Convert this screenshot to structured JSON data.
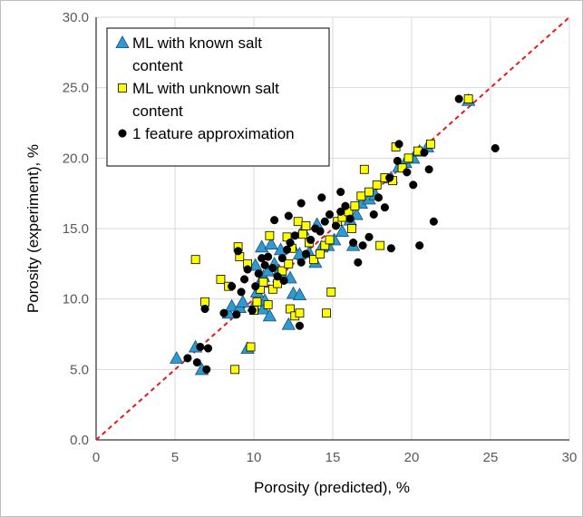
{
  "chart_data": {
    "type": "scatter",
    "xlabel": "Porosity (predicted), %",
    "ylabel": "Porosity (experiment), %",
    "xlim": [
      0,
      30
    ],
    "ylim": [
      0,
      30
    ],
    "x_ticks": [
      "0",
      "5",
      "10",
      "15",
      "20",
      "25",
      "30"
    ],
    "y_ticks": [
      "0.0",
      "5.0",
      "10.0",
      "15.0",
      "20.0",
      "25.0",
      "30.0"
    ],
    "grid": true,
    "legend_placement": "top-left",
    "reference_line": {
      "from": [
        0,
        0
      ],
      "to": [
        30,
        30
      ],
      "color": "#e41a1c",
      "style": "dashed"
    },
    "series": [
      {
        "name": "ML with known salt content",
        "legend_lines": [
          "ML with known salt",
          "content"
        ],
        "marker": "triangle",
        "color": "#2e9ad0",
        "points": [
          [
            5.1,
            5.8
          ],
          [
            6.3,
            6.6
          ],
          [
            6.7,
            5.0
          ],
          [
            9.6,
            6.5
          ],
          [
            8.4,
            9.0
          ],
          [
            8.6,
            9.5
          ],
          [
            9.1,
            9.4
          ],
          [
            9.3,
            9.8
          ],
          [
            10.0,
            9.5
          ],
          [
            10.6,
            9.3
          ],
          [
            10.7,
            9.9
          ],
          [
            11.0,
            8.8
          ],
          [
            10.2,
            10.5
          ],
          [
            10.4,
            11.2
          ],
          [
            10.6,
            11.6
          ],
          [
            10.9,
            12.0
          ],
          [
            11.3,
            12.5
          ],
          [
            11.6,
            12.0
          ],
          [
            11.9,
            11.5
          ],
          [
            12.3,
            11.5
          ],
          [
            12.5,
            10.4
          ],
          [
            12.9,
            10.3
          ],
          [
            12.2,
            8.2
          ],
          [
            10.5,
            13.7
          ],
          [
            11.1,
            13.9
          ],
          [
            11.7,
            13.5
          ],
          [
            12.4,
            13.8
          ],
          [
            12.9,
            13.2
          ],
          [
            13.5,
            13.3
          ],
          [
            13.9,
            12.6
          ],
          [
            14.3,
            13.7
          ],
          [
            14.7,
            13.8
          ],
          [
            15.1,
            14.2
          ],
          [
            15.6,
            14.8
          ],
          [
            16.1,
            15.6
          ],
          [
            16.5,
            16.0
          ],
          [
            16.3,
            13.8
          ],
          [
            16.8,
            16.8
          ],
          [
            17.3,
            17.1
          ],
          [
            17.7,
            17.4
          ],
          [
            18.7,
            18.6
          ],
          [
            19.2,
            19.4
          ],
          [
            19.6,
            19.7
          ],
          [
            20.1,
            20.0
          ],
          [
            20.5,
            20.5
          ],
          [
            21.0,
            20.8
          ],
          [
            23.6,
            24.1
          ],
          [
            10.1,
            12.4
          ],
          [
            13.1,
            14.9
          ],
          [
            14.0,
            15.3
          ]
        ]
      },
      {
        "name": "ML with unknown salt content",
        "legend_lines": [
          "ML with unknown salt",
          "content"
        ],
        "marker": "square",
        "color": "#ffff00",
        "points": [
          [
            6.3,
            12.8
          ],
          [
            6.9,
            9.8
          ],
          [
            7.9,
            11.4
          ],
          [
            8.4,
            10.9
          ],
          [
            8.8,
            5.0
          ],
          [
            9.0,
            13.7
          ],
          [
            9.1,
            13.0
          ],
          [
            9.6,
            12.5
          ],
          [
            9.8,
            6.6
          ],
          [
            10.0,
            9.2
          ],
          [
            10.2,
            9.8
          ],
          [
            10.4,
            10.7
          ],
          [
            10.6,
            11.2
          ],
          [
            10.9,
            9.6
          ],
          [
            11.2,
            10.7
          ],
          [
            11.5,
            11.1
          ],
          [
            11.8,
            12.0
          ],
          [
            12.2,
            12.5
          ],
          [
            12.3,
            9.3
          ],
          [
            12.6,
            8.8
          ],
          [
            12.9,
            9.0
          ],
          [
            12.1,
            14.4
          ],
          [
            12.4,
            13.6
          ],
          [
            12.8,
            15.5
          ],
          [
            13.1,
            14.6
          ],
          [
            13.5,
            14.0
          ],
          [
            13.8,
            12.8
          ],
          [
            14.2,
            13.2
          ],
          [
            14.5,
            13.8
          ],
          [
            14.8,
            14.2
          ],
          [
            14.9,
            10.5
          ],
          [
            14.6,
            9.0
          ],
          [
            15.3,
            15.5
          ],
          [
            15.6,
            15.8
          ],
          [
            16.0,
            16.2
          ],
          [
            16.2,
            15.0
          ],
          [
            16.4,
            16.6
          ],
          [
            16.8,
            17.3
          ],
          [
            17.0,
            19.2
          ],
          [
            17.3,
            17.6
          ],
          [
            17.8,
            18.1
          ],
          [
            18.0,
            13.8
          ],
          [
            18.3,
            18.6
          ],
          [
            18.8,
            18.4
          ],
          [
            19.0,
            20.8
          ],
          [
            19.4,
            19.3
          ],
          [
            19.8,
            20.0
          ],
          [
            20.4,
            20.5
          ],
          [
            21.2,
            21.0
          ],
          [
            23.6,
            24.2
          ],
          [
            11.0,
            14.5
          ],
          [
            13.3,
            15.2
          ]
        ]
      },
      {
        "name": "1 feature approximation",
        "legend_lines": [
          "1 feature approximation"
        ],
        "marker": "circle",
        "color": "#000000",
        "points": [
          [
            5.8,
            5.8
          ],
          [
            6.4,
            5.5
          ],
          [
            6.6,
            6.6
          ],
          [
            7.0,
            5.0
          ],
          [
            7.1,
            6.5
          ],
          [
            6.9,
            9.3
          ],
          [
            8.1,
            9.0
          ],
          [
            8.6,
            10.9
          ],
          [
            8.9,
            8.9
          ],
          [
            9.2,
            10.5
          ],
          [
            9.4,
            11.4
          ],
          [
            9.6,
            12.1
          ],
          [
            9.9,
            9.2
          ],
          [
            10.1,
            10.9
          ],
          [
            10.3,
            11.8
          ],
          [
            10.7,
            12.4
          ],
          [
            10.9,
            13.0
          ],
          [
            11.2,
            12.2
          ],
          [
            11.5,
            11.6
          ],
          [
            11.8,
            12.9
          ],
          [
            12.1,
            13.5
          ],
          [
            12.3,
            14.0
          ],
          [
            12.6,
            14.5
          ],
          [
            12.9,
            8.1
          ],
          [
            13.0,
            12.6
          ],
          [
            13.3,
            13.2
          ],
          [
            13.6,
            14.2
          ],
          [
            13.9,
            15.0
          ],
          [
            14.2,
            14.8
          ],
          [
            14.5,
            15.5
          ],
          [
            14.8,
            16.0
          ],
          [
            15.2,
            15.2
          ],
          [
            15.5,
            16.2
          ],
          [
            15.8,
            16.6
          ],
          [
            16.1,
            15.7
          ],
          [
            16.3,
            14.0
          ],
          [
            16.6,
            12.6
          ],
          [
            16.9,
            13.8
          ],
          [
            17.3,
            14.4
          ],
          [
            17.6,
            16.0
          ],
          [
            17.9,
            17.2
          ],
          [
            18.3,
            16.5
          ],
          [
            18.6,
            18.6
          ],
          [
            18.7,
            13.6
          ],
          [
            19.1,
            19.8
          ],
          [
            19.2,
            21.0
          ],
          [
            19.7,
            19.0
          ],
          [
            20.1,
            18.1
          ],
          [
            20.5,
            13.8
          ],
          [
            20.8,
            20.4
          ],
          [
            21.1,
            19.2
          ],
          [
            21.4,
            15.5
          ],
          [
            23.0,
            24.2
          ],
          [
            25.3,
            20.7
          ],
          [
            9.0,
            13.4
          ],
          [
            11.3,
            15.6
          ],
          [
            12.2,
            15.9
          ],
          [
            13.0,
            16.8
          ],
          [
            14.3,
            17.2
          ],
          [
            15.5,
            17.6
          ],
          [
            10.5,
            12.9
          ],
          [
            11.9,
            11.3
          ]
        ]
      }
    ]
  }
}
